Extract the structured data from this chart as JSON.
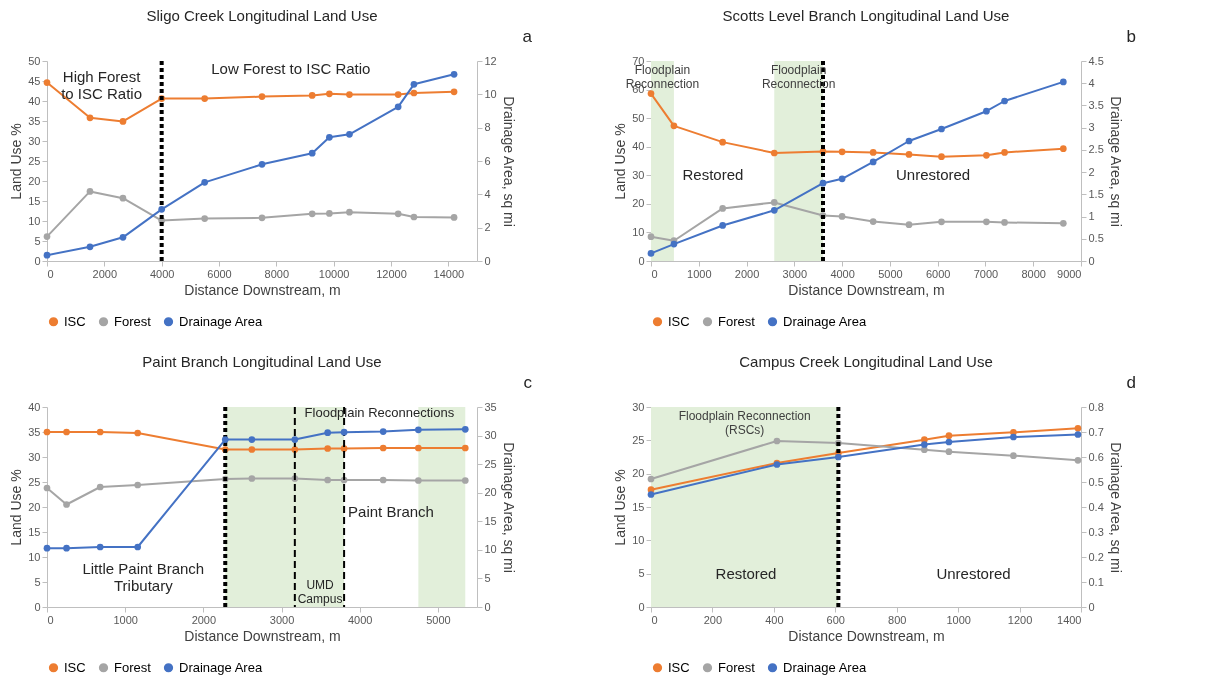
{
  "chart_data": [
    {
      "type": "line",
      "title": "Sligo Creek Longitudinal Land Use",
      "xlabel": "Distance Downstream, m",
      "ylabel": "Land Use %",
      "y2label": "Drainage Area, sq mi",
      "x": [
        0,
        1500,
        2650,
        4000,
        5500,
        7500,
        9250,
        9850,
        10550,
        12250,
        12800,
        14200
      ],
      "series": [
        {
          "name": "ISC",
          "color": "#ed7d31",
          "values": [
            44.6,
            35.8,
            34.9,
            40.6,
            40.6,
            41.1,
            41.4,
            41.8,
            41.6,
            41.6,
            42.0,
            42.3
          ]
        },
        {
          "name": "Forest",
          "color": "#a5a5a5",
          "values": [
            6.1,
            17.4,
            15.7,
            10.1,
            10.6,
            10.8,
            11.8,
            11.9,
            12.2,
            11.8,
            11.0,
            10.9
          ]
        },
        {
          "name": "Drainage Area",
          "color": "#4472c4",
          "axis": "y2",
          "values": [
            0.35,
            0.85,
            1.42,
            3.1,
            4.72,
            5.8,
            6.47,
            7.42,
            7.6,
            9.25,
            10.6,
            11.2
          ]
        }
      ],
      "xlim": [
        0,
        15000
      ],
      "xticks": [
        0,
        2000,
        4000,
        6000,
        8000,
        10000,
        12000,
        14000
      ],
      "ylim": [
        0,
        50
      ],
      "yticks": [
        0,
        5,
        10,
        15,
        20,
        25,
        30,
        35,
        40,
        45,
        50
      ],
      "y2lim": [
        0,
        12
      ],
      "y2ticks": [
        0,
        2,
        4,
        6,
        8,
        10,
        12
      ],
      "ref_lines": [
        {
          "axis": "x",
          "value": 4000,
          "line_style": "dotted",
          "color": "#000000"
        }
      ],
      "annotations": [
        "a",
        "High Forest\nto ISC Ratio",
        "Low Forest to ISC Ratio"
      ],
      "legend": "bottom",
      "marker": "circle"
    },
    {
      "type": "line",
      "title": "Scotts Level Branch Longitudinal Land Use",
      "xlabel": "Distance Downstream, m",
      "ylabel": "Land Use %",
      "y2label": "Drainage Area, sq mi",
      "x": [
        0,
        480,
        1500,
        2580,
        3600,
        4000,
        4650,
        5400,
        6080,
        7020,
        7400,
        8630
      ],
      "series": [
        {
          "name": "ISC",
          "color": "#ed7d31",
          "values": [
            58.6,
            47.3,
            41.6,
            37.8,
            38.3,
            38.2,
            38.0,
            37.3,
            36.5,
            37.0,
            38.0,
            39.3
          ]
        },
        {
          "name": "Forest",
          "color": "#a5a5a5",
          "values": [
            8.5,
            7.1,
            18.4,
            20.5,
            15.9,
            15.6,
            13.8,
            12.7,
            13.7,
            13.7,
            13.5,
            13.2
          ]
        },
        {
          "name": "Drainage Area",
          "color": "#4472c4",
          "axis": "y2",
          "values": [
            0.17,
            0.38,
            0.8,
            1.14,
            1.75,
            1.85,
            2.23,
            2.7,
            2.97,
            3.37,
            3.6,
            4.03
          ]
        }
      ],
      "xlim": [
        0,
        9000
      ],
      "xticks": [
        0,
        1000,
        2000,
        3000,
        4000,
        5000,
        6000,
        7000,
        8000,
        9000
      ],
      "ylim": [
        0,
        70
      ],
      "yticks": [
        0,
        10,
        20,
        30,
        40,
        50,
        60,
        70
      ],
      "y2lim": [
        0,
        4.5
      ],
      "y2ticks": [
        0,
        0.5,
        1,
        1.5,
        2,
        2.5,
        3,
        3.5,
        4,
        4.5
      ],
      "bands": [
        {
          "axis": "x",
          "from": 0,
          "to": 480,
          "label": "Floodplain\nReconnection",
          "color": "#e2efda"
        },
        {
          "axis": "x",
          "from": 2580,
          "to": 3600,
          "label": "Floodplain\nReconnection",
          "color": "#e2efda"
        }
      ],
      "ref_lines": [
        {
          "axis": "x",
          "value": 3600,
          "line_style": "dotted",
          "color": "#000000"
        }
      ],
      "annotations": [
        "b",
        "Restored",
        "Unrestored"
      ],
      "legend": "bottom",
      "marker": "circle"
    },
    {
      "type": "line",
      "title": "Paint Branch Longitudinal Land Use",
      "xlabel": "Distance Downstream, m",
      "ylabel": "Land Use %",
      "y2label": "Drainage Area, sq mi",
      "x": [
        0,
        250,
        680,
        1160,
        2280,
        2620,
        3170,
        3590,
        3800,
        4300,
        4750,
        5350
      ],
      "series": [
        {
          "name": "ISC",
          "color": "#ed7d31",
          "values": [
            35.0,
            35.0,
            35.0,
            34.8,
            31.5,
            31.5,
            31.5,
            31.7,
            31.7,
            31.8,
            31.8,
            31.8
          ]
        },
        {
          "name": "Forest",
          "color": "#a5a5a5",
          "values": [
            23.8,
            20.5,
            24.0,
            24.4,
            25.6,
            25.7,
            25.7,
            25.4,
            25.4,
            25.4,
            25.3,
            25.3
          ]
        },
        {
          "name": "Drainage Area",
          "color": "#4472c4",
          "axis": "y2",
          "values": [
            10.3,
            10.3,
            10.5,
            10.5,
            29.3,
            29.3,
            29.3,
            30.5,
            30.6,
            30.7,
            31.0,
            31.1
          ]
        }
      ],
      "xlim": [
        0,
        5500
      ],
      "xticks": [
        0,
        1000,
        2000,
        3000,
        4000,
        5000
      ],
      "ylim": [
        0,
        40
      ],
      "yticks": [
        0,
        5,
        10,
        15,
        20,
        25,
        30,
        35,
        40
      ],
      "y2lim": [
        0,
        35
      ],
      "y2ticks": [
        0,
        5,
        10,
        15,
        20,
        25,
        30,
        35
      ],
      "bands": [
        {
          "axis": "x",
          "from": 2280,
          "to": 3800,
          "color": "#e2efda"
        },
        {
          "axis": "x",
          "from": 4750,
          "to": 5350,
          "color": "#e2efda"
        }
      ],
      "ref_lines": [
        {
          "axis": "x",
          "value": 2280,
          "line_style": "dotted",
          "color": "#000000"
        },
        {
          "axis": "x",
          "value": 3170,
          "line_style": "dashed",
          "color": "#000000"
        },
        {
          "axis": "x",
          "value": 3800,
          "line_style": "dashed",
          "color": "#000000"
        }
      ],
      "annotations": [
        "c",
        "Floodplain Reconnections",
        "Paint Branch",
        "Little Paint Branch\nTributary",
        "UMD\nCampus"
      ],
      "legend": "bottom",
      "marker": "circle"
    },
    {
      "type": "line",
      "title": "Campus Creek Longitudinal Land Use",
      "xlabel": "Distance Downstream, m",
      "ylabel": "Land Use %",
      "y2label": "Drainage Area, sq mi",
      "x": [
        0,
        410,
        610,
        890,
        970,
        1180,
        1390
      ],
      "series": [
        {
          "name": "ISC",
          "color": "#ed7d31",
          "values": [
            17.6,
            21.6,
            23.1,
            25.1,
            25.7,
            26.2,
            26.8
          ]
        },
        {
          "name": "Forest",
          "color": "#a5a5a5",
          "values": [
            19.2,
            24.9,
            24.6,
            23.6,
            23.3,
            22.7,
            22.0
          ]
        },
        {
          "name": "Drainage Area",
          "color": "#4472c4",
          "axis": "y2",
          "values": [
            0.45,
            0.57,
            0.6,
            0.65,
            0.66,
            0.68,
            0.69
          ]
        }
      ],
      "xlim": [
        0,
        1400
      ],
      "xticks": [
        0,
        200,
        400,
        600,
        800,
        1000,
        1200,
        1400
      ],
      "ylim": [
        0,
        30
      ],
      "yticks": [
        0,
        5,
        10,
        15,
        20,
        25,
        30
      ],
      "y2lim": [
        0,
        0.8
      ],
      "y2ticks": [
        0,
        0.1,
        0.2,
        0.3,
        0.4,
        0.5,
        0.6,
        0.7,
        0.8
      ],
      "bands": [
        {
          "axis": "x",
          "from": 0,
          "to": 610,
          "label": "Floodplain Reconnection\n(RSCs)",
          "color": "#e2efda"
        }
      ],
      "ref_lines": [
        {
          "axis": "x",
          "value": 610,
          "line_style": "dotted",
          "color": "#000000"
        }
      ],
      "annotations": [
        "d",
        "Restored",
        "Unrestored"
      ],
      "legend": "bottom",
      "marker": "circle"
    }
  ]
}
